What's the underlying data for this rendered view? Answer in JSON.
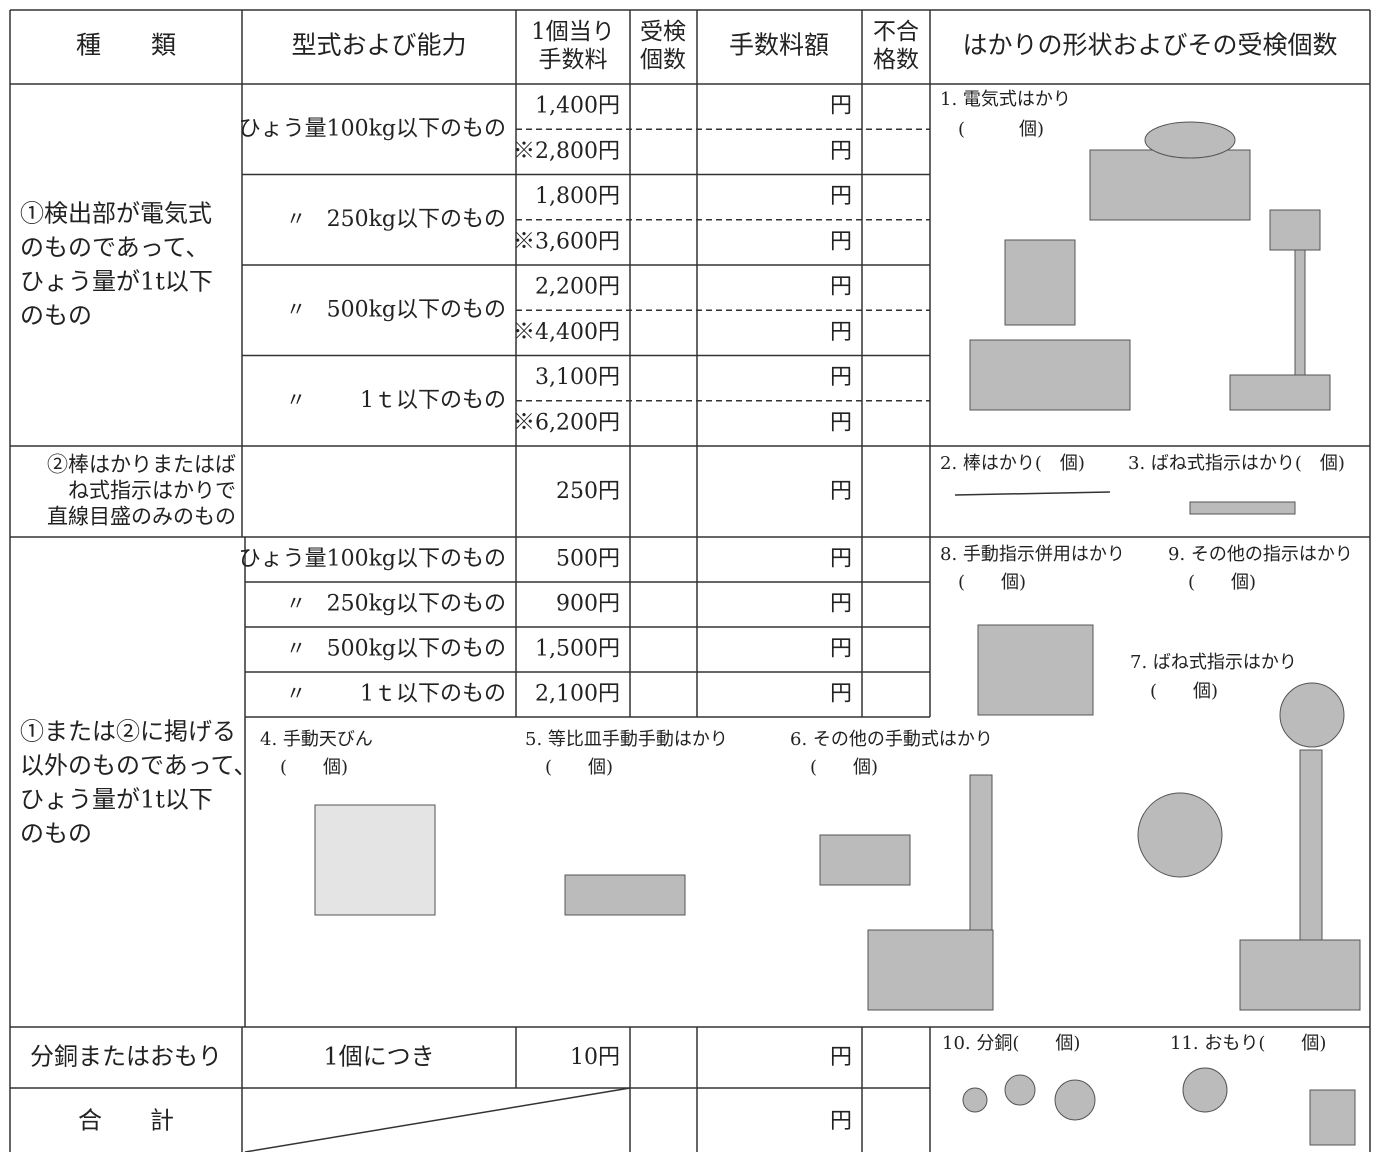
{
  "header": {
    "columns": [
      [
        "種　　類"
      ],
      [
        "型式および能力"
      ],
      [
        "1個当り",
        "手数料"
      ],
      [
        "受検",
        "個数"
      ],
      [
        "手数料額"
      ],
      [
        "不合",
        "格数"
      ],
      [
        "はかりの形状およびその受検個数"
      ]
    ]
  },
  "electric": {
    "label": [
      "①検出部が電気式",
      "のものであって、",
      "ひょう量が1t以下",
      "のもの"
    ],
    "rows": [
      {
        "model": "ひょう量100kg以下のもの",
        "fees": [
          {
            "fee": "1,400円",
            "unit": "円"
          },
          {
            "fee": "※2,800円",
            "unit": "円"
          }
        ]
      },
      {
        "mark": "〃",
        "model": "250kg以下のもの",
        "fees": [
          {
            "fee": "1,800円",
            "unit": "円"
          },
          {
            "fee": "※3,600円",
            "unit": "円"
          }
        ]
      },
      {
        "mark": "〃",
        "model": "500kg以下のもの",
        "fees": [
          {
            "fee": "2,200円",
            "unit": "円"
          },
          {
            "fee": "※4,400円",
            "unit": "円"
          }
        ]
      },
      {
        "mark": "〃",
        "model": "1ｔ以下のもの",
        "fees": [
          {
            "fee": "3,100円",
            "unit": "円"
          },
          {
            "fee": "※6,200円",
            "unit": "円"
          }
        ]
      }
    ],
    "items": [
      {
        "label": "1. 電気式はかり",
        "count": "(　　　個)"
      }
    ]
  },
  "linear": {
    "label": [
      "②棒はかりまたはば",
      "ね式指示はかりで",
      "直線目盛のみのもの"
    ],
    "fee": "250円",
    "unit": "円",
    "items": [
      {
        "label": "2. 棒はかり(　個)"
      },
      {
        "label": "3. ばね式指示はかり(　個)"
      }
    ]
  },
  "other": {
    "label": [
      "①または②に掲げる",
      "以外のものであって、",
      "ひょう量が1t以下",
      "のもの"
    ],
    "rows": [
      {
        "model": "ひょう量100kg以下のもの",
        "fee": "500円",
        "unit": "円"
      },
      {
        "mark": "〃",
        "model": "250kg以下のもの",
        "fee": "900円",
        "unit": "円"
      },
      {
        "mark": "〃",
        "model": "500kg以下のもの",
        "fee": "1,500円",
        "unit": "円"
      },
      {
        "mark": "〃",
        "model": "1ｔ以下のもの",
        "fee": "2,100円",
        "unit": "円"
      }
    ],
    "items": [
      {
        "label": "8. 手動指示併用はかり",
        "count": "(　　個)"
      },
      {
        "label": "9. その他の指示はかり",
        "count": "(　　個)"
      },
      {
        "label": "7. ばね式指示はかり",
        "count": "(　　個)"
      },
      {
        "label": "4. 手動天びん",
        "count": "(　　個)"
      },
      {
        "label": "5. 等比皿手動手動はかり",
        "count": "(　　個)"
      },
      {
        "label": "6. その他の手動式はかり",
        "count": "(　　個)"
      }
    ]
  },
  "weights": {
    "label": "分銅またはおもり",
    "model": "1個につき",
    "fee": "10円",
    "unit": "円",
    "items": [
      {
        "label": "10. 分銅(　　個)"
      },
      {
        "label": "11. おもり(　　個)"
      }
    ]
  },
  "total": {
    "label": "合　　計",
    "unit": "円"
  }
}
